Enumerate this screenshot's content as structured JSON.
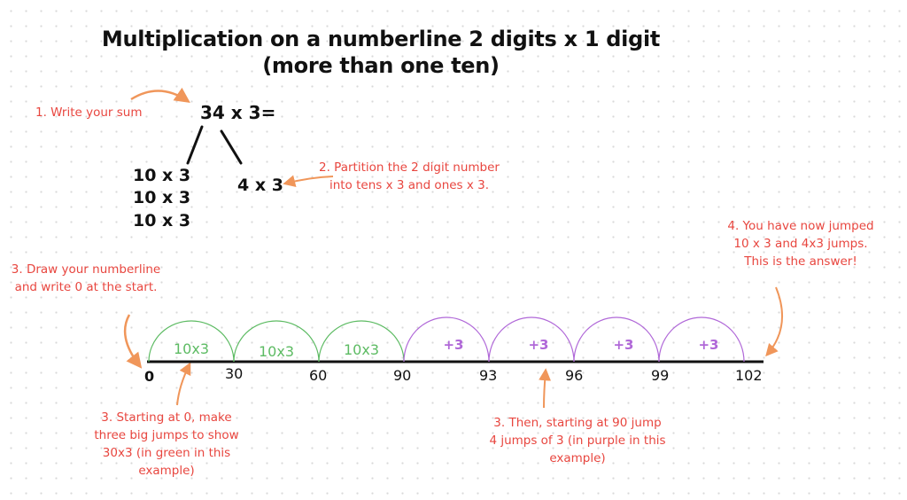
{
  "title": {
    "line1": "Multiplication on a numberline 2 digits x 1 digit",
    "line2": "(more than one ten)"
  },
  "sum": {
    "expression": "34 x 3=",
    "tens": [
      "10 x 3",
      "10 x 3",
      "10 x 3"
    ],
    "ones": "4 x 3"
  },
  "notes": {
    "step1": "1.  Write your sum",
    "step2": "2. Partition the 2 digit number into tens x 3 and ones x 3.",
    "step3_draw": "3. Draw your numberline and write 0 at the start.",
    "step3_start": "3. Starting at 0, make three big jumps to show 30x3 (in green in this example)",
    "step3_then": "3. Then, starting at 90 jump 4 jumps of 3 (in purple in this example)",
    "step4": "4. You have now jumped 10 x 3 and 4x3 jumps. This is the answer!"
  },
  "numberline": {
    "ticks": [
      "0",
      "30",
      "60",
      "90",
      "93",
      "96",
      "99",
      "102"
    ],
    "green_jumps": [
      "10x3",
      "10x3",
      "10x3"
    ],
    "purple_jumps": [
      "+3",
      "+3",
      "+3",
      "+3"
    ]
  },
  "colors": {
    "note_red": "#e8463f",
    "arrow_orange": "#f0965a",
    "green": "#5dbb63",
    "purple": "#b068d8",
    "ink": "#111111"
  }
}
